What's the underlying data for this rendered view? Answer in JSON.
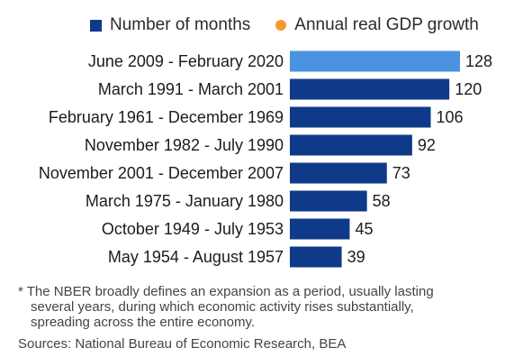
{
  "legend": [
    {
      "label": "Number of months",
      "color": "#0f3a8a",
      "shape": "square"
    },
    {
      "label": "Annual real GDP growth",
      "color": "#f29a2e",
      "shape": "dot"
    }
  ],
  "chart_data": {
    "type": "bar",
    "orientation": "horizontal",
    "title": "",
    "xlabel": "",
    "ylabel": "",
    "xlim": [
      0,
      128
    ],
    "grid": false,
    "legend_position": "top",
    "categories": [
      "June 2009 - February 2020",
      "March 1991 - March 2001",
      "February 1961 - December 1969",
      "November 1982 - July 1990",
      "November 2001 - December 2007",
      "March 1975 - January 1980",
      "October 1949 - July 1953",
      "May 1954 - August 1957"
    ],
    "series": [
      {
        "name": "Number of months",
        "values": [
          128,
          120,
          106,
          92,
          73,
          58,
          45,
          39
        ],
        "color": "#0f3a8a",
        "highlight_index": 0,
        "highlight_color": "#4b92e0"
      }
    ]
  },
  "footnote": [
    "* The NBER broadly defines an expansion as a period, usually lasting",
    "several years, during which economic activity rises substantially,",
    "spreading across the entire economy."
  ],
  "source": "Sources: National Bureau of Economic Research, BEA"
}
